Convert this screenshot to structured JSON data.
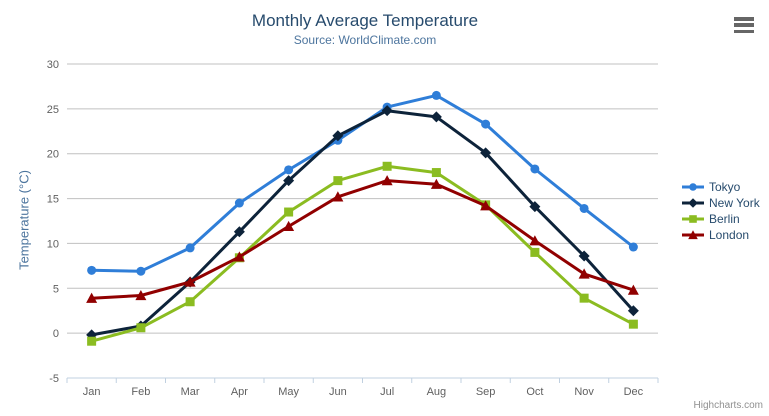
{
  "chart": {
    "title": "Monthly Average Temperature",
    "subtitle": "Source: WorldClimate.com",
    "credit": "Highcharts.com"
  },
  "icons": {
    "export_menu_icon": "hamburger-bars"
  },
  "colors": {
    "title": "#274b6d",
    "subtitle": "#4d759e",
    "axis_title": "#4d759e",
    "axis_label": "#606060",
    "grid": "#c0c0c0",
    "axis_line": "#c0d0e0",
    "legend_text": "#274b6d",
    "credit": "#909090"
  },
  "chart_data": {
    "type": "line",
    "title": "Monthly Average Temperature",
    "subtitle": "Source: WorldClimate.com",
    "categories": [
      "Jan",
      "Feb",
      "Mar",
      "Apr",
      "May",
      "Jun",
      "Jul",
      "Aug",
      "Sep",
      "Oct",
      "Nov",
      "Dec"
    ],
    "series": [
      {
        "name": "Tokyo",
        "color": "#2f7ed8",
        "marker": "circle",
        "values": [
          7.0,
          6.9,
          9.5,
          14.5,
          18.2,
          21.5,
          25.2,
          26.5,
          23.3,
          18.3,
          13.9,
          9.6
        ]
      },
      {
        "name": "New York",
        "color": "#0d233a",
        "marker": "diamond",
        "values": [
          -0.2,
          0.8,
          5.7,
          11.3,
          17.0,
          22.0,
          24.8,
          24.1,
          20.1,
          14.1,
          8.6,
          2.5
        ]
      },
      {
        "name": "Berlin",
        "color": "#8bbc21",
        "marker": "square",
        "values": [
          -0.9,
          0.6,
          3.5,
          8.4,
          13.5,
          17.0,
          18.6,
          17.9,
          14.3,
          9.0,
          3.9,
          1.0
        ]
      },
      {
        "name": "London",
        "color": "#910000",
        "marker": "triangle",
        "values": [
          3.9,
          4.2,
          5.7,
          8.5,
          11.9,
          15.2,
          17.0,
          16.6,
          14.2,
          10.3,
          6.6,
          4.8
        ]
      }
    ],
    "xlabel": "",
    "ylabel": "Temperature (°C)",
    "ylim": [
      -5,
      30
    ],
    "ytick_step": 5,
    "yticks": [
      -5,
      0,
      5,
      10,
      15,
      20,
      25,
      30
    ],
    "grid": true,
    "legend_position": "right"
  }
}
